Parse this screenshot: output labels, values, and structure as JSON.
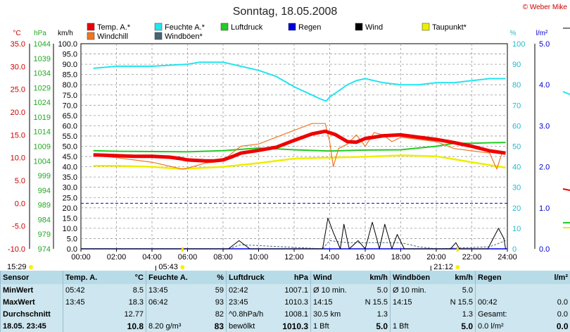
{
  "title": "Sonntag, 18.05.2008",
  "copyright": "© Weber Mike",
  "colors": {
    "temp": "#ee0000",
    "humidity": "#22e5f0",
    "pressure": "#22cc22",
    "rain": "#0000dd",
    "wind": "#000000",
    "dewpoint": "#eeee00",
    "windchill": "#ee7722",
    "gust": "#446677"
  },
  "legend": [
    {
      "label": "Temp. A.*",
      "color": "#ee0000"
    },
    {
      "label": "Feuchte A.*",
      "color": "#22e5f0"
    },
    {
      "label": "Luftdruck",
      "color": "#22cc22"
    },
    {
      "label": "Regen",
      "color": "#0000dd"
    },
    {
      "label": "Wind",
      "color": "#000000"
    },
    {
      "label": "Taupunkt*",
      "color": "#eeee00"
    },
    {
      "label": "Windchill",
      "color": "#ee7722"
    },
    {
      "label": "Windböen*",
      "color": "#446677"
    }
  ],
  "axis_units": {
    "temp": "°C",
    "pressure": "hPa",
    "wind": "km/h",
    "humidity": "%",
    "rain": "l/m²"
  },
  "chart_data": {
    "type": "line",
    "xlim": [
      "00:00",
      "24:00"
    ],
    "x_ticks": [
      "00:00",
      "02:00",
      "04:00",
      "06:00",
      "08:00",
      "10:00",
      "12:00",
      "14:00",
      "16:00",
      "18:00",
      "20:00",
      "22:00",
      "24:00"
    ],
    "temp_ticks": [
      "35.0",
      "30.0",
      "25.0",
      "20.0",
      "15.0",
      "10.0",
      "5.0",
      "0.0",
      "-5.0",
      "-10.0"
    ],
    "pressure_ticks": [
      "1044",
      "1039",
      "1034",
      "1029",
      "1024",
      "1019",
      "1014",
      "1009",
      "1004",
      "999",
      "994",
      "989",
      "984",
      "979",
      "974"
    ],
    "wind_ticks": [
      "100.0",
      "95.0",
      "90.0",
      "85.0",
      "80.0",
      "75.0",
      "70.0",
      "65.0",
      "60.0",
      "55.0",
      "50.0",
      "45.0",
      "40.0",
      "35.0",
      "30.0",
      "25.0",
      "20.0",
      "15.0",
      "10.0",
      "5.0",
      "0.0"
    ],
    "humidity_ticks": [
      "100",
      "90",
      "80",
      "70",
      "60",
      "50",
      "40",
      "30",
      "20",
      "10",
      "0"
    ],
    "rain_ticks": [
      "5.0",
      "4.0",
      "3.0",
      "2.0",
      "1.0",
      "0.0"
    ],
    "ylim_temp": [
      -10,
      35
    ],
    "ylim_pressure": [
      974,
      1044
    ],
    "ylim_wind": [
      0,
      100
    ],
    "ylim_humidity": [
      0,
      100
    ],
    "ylim_rain": [
      0,
      5
    ],
    "reference_line": {
      "axis": "temp",
      "value": 0
    },
    "sunrise": "05:43",
    "sunset": "21:12",
    "day_start": "15:29",
    "series": [
      {
        "name": "Temp. A.*",
        "color": "#ee0000",
        "axis": "temp",
        "x": [
          0.7,
          1.5,
          3,
          4,
          5,
          5.6,
          6,
          7,
          7.5,
          8,
          8.5,
          9,
          10,
          11,
          12,
          13,
          13.75,
          14.3,
          15,
          15.5,
          16,
          17,
          18,
          19,
          20,
          21,
          22,
          23,
          23.9
        ],
        "y": [
          10.6,
          10.5,
          10.3,
          10.3,
          10.1,
          9.8,
          9.5,
          9.3,
          9.3,
          9.5,
          10.2,
          11.0,
          11.6,
          12.3,
          13.8,
          15.2,
          15.8,
          15.1,
          13.5,
          13.4,
          14.2,
          14.8,
          15.0,
          14.5,
          14.0,
          13.3,
          12.5,
          11.5,
          11.0
        ]
      },
      {
        "name": "Feuchte A.*",
        "color": "#22e5f0",
        "axis": "humidity",
        "x": [
          0.7,
          2,
          4,
          6,
          6.7,
          8,
          9,
          10,
          11,
          12,
          13,
          13.5,
          13.8,
          14,
          15,
          15.5,
          16,
          17,
          18,
          19,
          20,
          21,
          22,
          23,
          23.9
        ],
        "y": [
          88,
          89,
          89,
          90,
          91,
          91,
          89,
          87,
          84,
          79,
          75,
          73,
          72,
          74,
          80,
          82,
          83,
          81,
          80,
          80,
          81,
          81,
          82,
          83,
          83
        ]
      },
      {
        "name": "Luftdruck",
        "color": "#22cc22",
        "axis": "pressure",
        "x": [
          0.7,
          2,
          4,
          6,
          8,
          10,
          12,
          14,
          16,
          18,
          20,
          21,
          22,
          23,
          23.9
        ],
        "y": [
          1007.5,
          1007.3,
          1007.2,
          1007.1,
          1007.5,
          1008.4,
          1007.8,
          1007.4,
          1007.7,
          1007.8,
          1009.0,
          1010.0,
          1010.0,
          1010.2,
          1010.3
        ]
      },
      {
        "name": "Taupunkt*",
        "color": "#eeee00",
        "axis": "temp",
        "x": [
          0.7,
          2,
          4,
          5.7,
          6,
          8,
          10,
          12,
          13.75,
          14,
          16,
          18,
          20,
          22,
          23.9
        ],
        "y": [
          8.2,
          8.2,
          8.0,
          7.5,
          7.6,
          8.0,
          8.8,
          9.8,
          10.0,
          10.0,
          10.2,
          10.5,
          10.3,
          9.0,
          7.8
        ]
      },
      {
        "name": "Windchill",
        "color": "#ee7722",
        "axis": "temp",
        "x": [
          0.7,
          2,
          4,
          5.7,
          6,
          7,
          8,
          8.5,
          9,
          10,
          11,
          12,
          13,
          13.75,
          14,
          14.2,
          14.5,
          15,
          15.5,
          16,
          16.5,
          17,
          17.5,
          18,
          19,
          20,
          21,
          22,
          23,
          23.4,
          23.7,
          23.9
        ],
        "y": [
          10.5,
          10.0,
          9.0,
          7.5,
          7.7,
          8.8,
          9.3,
          11.0,
          12.5,
          13.0,
          14.5,
          16.0,
          17.5,
          17.5,
          13.5,
          8.0,
          12.0,
          13.0,
          15.0,
          12.5,
          15.5,
          15.0,
          13.5,
          14.5,
          14.0,
          13.5,
          12.0,
          11.5,
          11.0,
          7.5,
          11.0,
          10.8
        ]
      },
      {
        "name": "Wind",
        "color": "#000000",
        "axis": "wind",
        "x": [
          0,
          8.3,
          8.9,
          9.5,
          13.6,
          13.9,
          14.2,
          14.6,
          14.8,
          15.1,
          15.6,
          16,
          16.4,
          16.8,
          17.1,
          17.5,
          17.8,
          18.2,
          18.4,
          20.8,
          21.1,
          21.3,
          21.9,
          22.9,
          23.2,
          23.5,
          23.8,
          23.9
        ],
        "y": [
          0,
          0,
          4,
          0,
          0,
          15,
          8,
          0,
          12,
          0,
          4,
          0,
          13,
          0,
          12,
          0,
          7,
          0,
          0,
          0,
          3,
          0,
          0,
          0,
          5,
          10,
          5,
          0
        ]
      },
      {
        "name": "Windböen*",
        "color": "#446677",
        "axis": "wind",
        "x": [
          0,
          8.3,
          9,
          13.6,
          14,
          15,
          16,
          17,
          18,
          19,
          20,
          23,
          23.9
        ],
        "y": [
          0,
          0,
          2,
          0,
          4,
          3,
          3,
          3,
          3,
          1,
          0,
          1,
          4
        ]
      },
      {
        "name": "Regen",
        "color": "#0000dd",
        "axis": "rain",
        "x": [
          0,
          24
        ],
        "y": [
          0,
          0
        ]
      }
    ]
  },
  "footer": {
    "day_start": "15:29",
    "sunrise": "05:43",
    "sunset": "21:12"
  },
  "table": {
    "headers": [
      {
        "a": "Sensor",
        "b": ""
      },
      {
        "a": "Temp. A.",
        "b": "°C"
      },
      {
        "a": "Feuchte A.",
        "b": "%"
      },
      {
        "a": "Luftdruck",
        "b": "hPa"
      },
      {
        "a": "Wind",
        "b": "km/h"
      },
      {
        "a": "Windböen",
        "b": "km/h"
      },
      {
        "a": "Regen",
        "b": "l/m²"
      }
    ],
    "rows": [
      {
        "label": "MinWert",
        "cells": [
          [
            "05:42",
            "8.5"
          ],
          [
            "13:45",
            "59"
          ],
          [
            "02:42",
            "1007.1"
          ],
          [
            "Ø 10 min.",
            "5.0"
          ],
          [
            "Ø 10 min.",
            "5.0"
          ],
          [
            "",
            ""
          ]
        ]
      },
      {
        "label": "MaxWert",
        "cells": [
          [
            "13:45",
            "18.3"
          ],
          [
            "06:42",
            "93"
          ],
          [
            "23:45",
            "1010.3"
          ],
          [
            "14:15",
            "N 15.5"
          ],
          [
            "14:15",
            "N 15.5"
          ],
          [
            "00:42",
            "0.0"
          ]
        ]
      },
      {
        "label": "Durchschnitt",
        "cells": [
          [
            "",
            "12.77"
          ],
          [
            "",
            "82"
          ],
          [
            "^0.8hPa/h",
            "1008.1"
          ],
          [
            "30.5 km",
            "1.3"
          ],
          [
            "",
            "1.3"
          ],
          [
            "Gesamt:",
            "0.0"
          ]
        ]
      },
      {
        "label": "18.05. 23:45",
        "cells": [
          [
            "",
            "10.8"
          ],
          [
            "8.20 g/m³",
            "83"
          ],
          [
            "bewölkt",
            "1010.3"
          ],
          [
            "1 Bft",
            "5.0"
          ],
          [
            "1 Bft",
            "5.0"
          ],
          [
            "0.0 l/m²",
            "0.0"
          ]
        ]
      }
    ]
  }
}
